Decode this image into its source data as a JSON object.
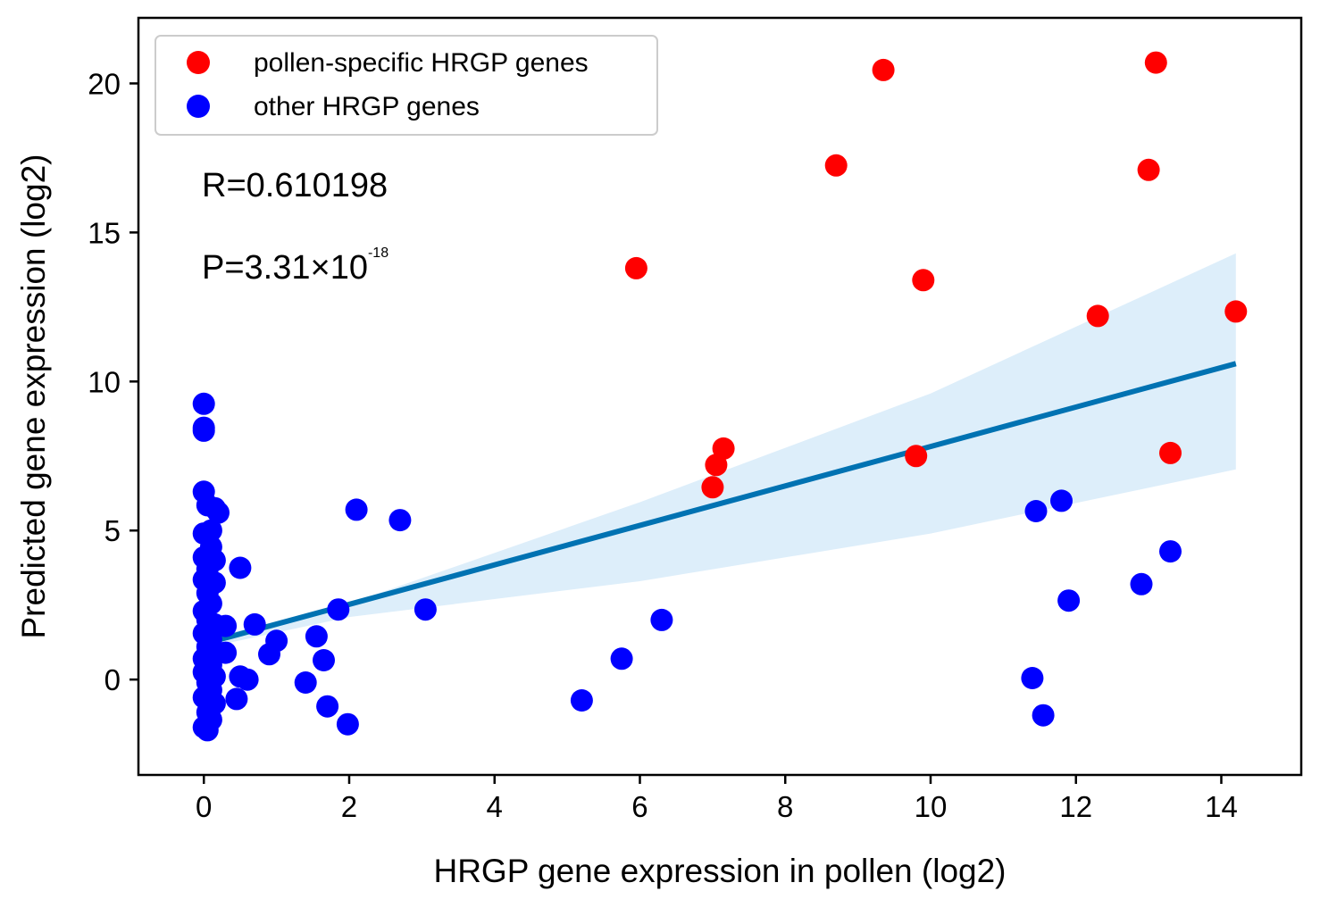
{
  "chart_data": {
    "type": "scatter",
    "xlabel": "HRGP gene expression in pollen (log2)",
    "ylabel": "Predicted gene expression (log2)",
    "xlim": [
      -0.9,
      15.1
    ],
    "ylim": [
      -3.2,
      22.2
    ],
    "x_ticks": [
      0,
      2,
      4,
      6,
      8,
      10,
      12,
      14
    ],
    "y_ticks": [
      0,
      5,
      10,
      15,
      20
    ],
    "grid": false,
    "legend": {
      "placement": "top-left",
      "entries": [
        {
          "label": "pollen-specific HRGP genes",
          "color": "#ff0000"
        },
        {
          "label": "other HRGP genes",
          "color": "#0000ff"
        }
      ]
    },
    "annotations": {
      "r_text": "R=0.610198",
      "p_text_base": "P=3.31×10",
      "p_text_exp": "-18"
    },
    "series": [
      {
        "name": "pollen-specific HRGP genes",
        "color": "#ff0000",
        "points": [
          [
            5.95,
            13.8
          ],
          [
            7.0,
            6.45
          ],
          [
            7.05,
            7.2
          ],
          [
            7.15,
            7.75
          ],
          [
            8.7,
            17.25
          ],
          [
            9.35,
            20.45
          ],
          [
            9.8,
            7.5
          ],
          [
            9.9,
            13.4
          ],
          [
            12.3,
            12.2
          ],
          [
            13.0,
            17.1
          ],
          [
            13.1,
            20.7
          ],
          [
            13.3,
            7.6
          ],
          [
            14.2,
            12.35
          ]
        ]
      },
      {
        "name": "other HRGP genes",
        "color": "#0000ff",
        "points": [
          [
            0.0,
            9.25
          ],
          [
            0.0,
            8.45
          ],
          [
            0.0,
            8.35
          ],
          [
            0.0,
            6.3
          ],
          [
            0.05,
            5.85
          ],
          [
            0.15,
            5.75
          ],
          [
            0.2,
            5.6
          ],
          [
            0.0,
            4.9
          ],
          [
            0.1,
            5.0
          ],
          [
            0.1,
            4.45
          ],
          [
            0.0,
            4.1
          ],
          [
            0.15,
            4.0
          ],
          [
            0.05,
            3.7
          ],
          [
            0.0,
            3.35
          ],
          [
            0.15,
            3.25
          ],
          [
            0.05,
            2.9
          ],
          [
            0.1,
            2.55
          ],
          [
            0.0,
            2.3
          ],
          [
            0.05,
            2.0
          ],
          [
            0.15,
            1.85
          ],
          [
            0.3,
            1.8
          ],
          [
            0.0,
            1.55
          ],
          [
            0.1,
            1.35
          ],
          [
            0.05,
            1.1
          ],
          [
            0.15,
            0.9
          ],
          [
            0.3,
            0.9
          ],
          [
            0.0,
            0.7
          ],
          [
            0.1,
            0.5
          ],
          [
            0.0,
            0.25
          ],
          [
            0.15,
            0.1
          ],
          [
            0.05,
            -0.1
          ],
          [
            0.1,
            -0.35
          ],
          [
            0.0,
            -0.6
          ],
          [
            0.15,
            -0.8
          ],
          [
            0.05,
            -1.1
          ],
          [
            0.1,
            -1.35
          ],
          [
            0.0,
            -1.6
          ],
          [
            0.05,
            -1.7
          ],
          [
            0.45,
            -0.65
          ],
          [
            0.5,
            3.75
          ],
          [
            0.5,
            0.1
          ],
          [
            0.6,
            0.0
          ],
          [
            0.7,
            1.85
          ],
          [
            0.9,
            0.85
          ],
          [
            1.0,
            1.3
          ],
          [
            1.4,
            -0.1
          ],
          [
            1.55,
            1.45
          ],
          [
            1.65,
            0.65
          ],
          [
            1.7,
            -0.9
          ],
          [
            1.85,
            2.35
          ],
          [
            1.98,
            -1.5
          ],
          [
            2.1,
            5.7
          ],
          [
            2.7,
            5.35
          ],
          [
            3.05,
            2.35
          ],
          [
            5.2,
            -0.7
          ],
          [
            5.75,
            0.7
          ],
          [
            6.3,
            2.0
          ],
          [
            11.4,
            0.05
          ],
          [
            11.45,
            5.65
          ],
          [
            11.55,
            -1.2
          ],
          [
            11.8,
            6.0
          ],
          [
            11.9,
            2.65
          ],
          [
            12.9,
            3.2
          ],
          [
            13.3,
            4.3
          ]
        ]
      }
    ],
    "regression": {
      "x": [
        0.0,
        14.2
      ],
      "y": [
        1.2,
        10.6
      ],
      "color": "#0072b2",
      "band_color": "#ddeefa",
      "band_lower": [
        [
          0.0,
          1.05
        ],
        [
          2.0,
          2.1
        ],
        [
          6.0,
          3.3
        ],
        [
          10.0,
          4.9
        ],
        [
          14.2,
          7.05
        ]
      ],
      "band_upper": [
        [
          0.0,
          1.35
        ],
        [
          2.0,
          2.55
        ],
        [
          6.0,
          5.95
        ],
        [
          10.0,
          9.6
        ],
        [
          14.2,
          14.3
        ]
      ]
    }
  }
}
